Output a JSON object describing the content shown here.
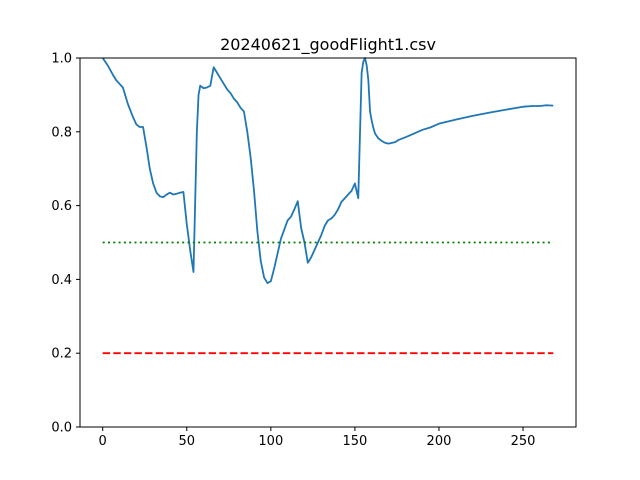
{
  "chart_data": {
    "type": "line",
    "title": "20240621_goodFlight1.csv",
    "xlabel": "",
    "ylabel": "",
    "xlim": [
      -13.5,
      281.5
    ],
    "ylim": [
      0.0,
      1.0
    ],
    "xticks": [
      0,
      50,
      100,
      150,
      200,
      250
    ],
    "xtick_labels": [
      "0",
      "50",
      "100",
      "150",
      "200",
      "250"
    ],
    "yticks": [
      0.0,
      0.2,
      0.4,
      0.6,
      0.8,
      1.0
    ],
    "ytick_labels": [
      "0.0",
      "0.2",
      "0.4",
      "0.6",
      "0.8",
      "1.0"
    ],
    "grid": false,
    "series": [
      {
        "color": "#1f77b4",
        "style": "solid",
        "x": [
          0,
          3,
          6,
          8,
          10,
          12,
          15,
          18,
          20,
          22,
          24,
          26,
          28,
          30,
          32,
          34,
          36,
          38,
          40,
          42,
          44,
          46,
          48,
          50,
          52,
          54,
          56,
          57,
          58,
          60,
          62,
          64,
          65,
          66,
          68,
          70,
          72,
          74,
          76,
          78,
          80,
          82,
          84,
          86,
          88,
          90,
          92,
          94,
          96,
          98,
          100,
          102,
          104,
          106,
          108,
          110,
          112,
          114,
          116,
          118,
          120,
          122,
          124,
          126,
          128,
          130,
          132,
          134,
          136,
          138,
          140,
          142,
          144,
          146,
          148,
          150,
          152,
          154,
          155,
          156,
          157,
          158,
          159,
          160,
          161,
          162,
          164,
          166,
          168,
          170,
          172,
          174,
          176,
          180,
          185,
          190,
          195,
          200,
          210,
          220,
          230,
          240,
          250,
          256,
          260,
          264,
          268
        ],
        "y": [
          1.0,
          0.98,
          0.955,
          0.94,
          0.93,
          0.92,
          0.875,
          0.84,
          0.82,
          0.813,
          0.813,
          0.76,
          0.7,
          0.66,
          0.635,
          0.625,
          0.623,
          0.63,
          0.635,
          0.63,
          0.632,
          0.635,
          0.637,
          0.55,
          0.48,
          0.42,
          0.8,
          0.9,
          0.925,
          0.918,
          0.92,
          0.925,
          0.95,
          0.975,
          0.96,
          0.945,
          0.93,
          0.915,
          0.905,
          0.89,
          0.88,
          0.865,
          0.855,
          0.8,
          0.73,
          0.64,
          0.53,
          0.45,
          0.405,
          0.39,
          0.395,
          0.43,
          0.47,
          0.51,
          0.535,
          0.56,
          0.57,
          0.59,
          0.612,
          0.54,
          0.5,
          0.445,
          0.46,
          0.48,
          0.5,
          0.52,
          0.545,
          0.56,
          0.565,
          0.575,
          0.59,
          0.61,
          0.62,
          0.63,
          0.64,
          0.66,
          0.62,
          0.96,
          0.99,
          1.0,
          0.98,
          0.94,
          0.855,
          0.83,
          0.81,
          0.795,
          0.782,
          0.775,
          0.77,
          0.768,
          0.77,
          0.772,
          0.778,
          0.785,
          0.795,
          0.805,
          0.812,
          0.822,
          0.833,
          0.843,
          0.852,
          0.86,
          0.868,
          0.87,
          0.87,
          0.872,
          0.871
        ]
      },
      {
        "color": "#008000",
        "style": "dotted",
        "x": [
          0,
          268
        ],
        "y": [
          0.5,
          0.5
        ]
      },
      {
        "color": "#ff0000",
        "style": "dashed",
        "x": [
          0,
          268
        ],
        "y": [
          0.2,
          0.2
        ]
      }
    ]
  }
}
